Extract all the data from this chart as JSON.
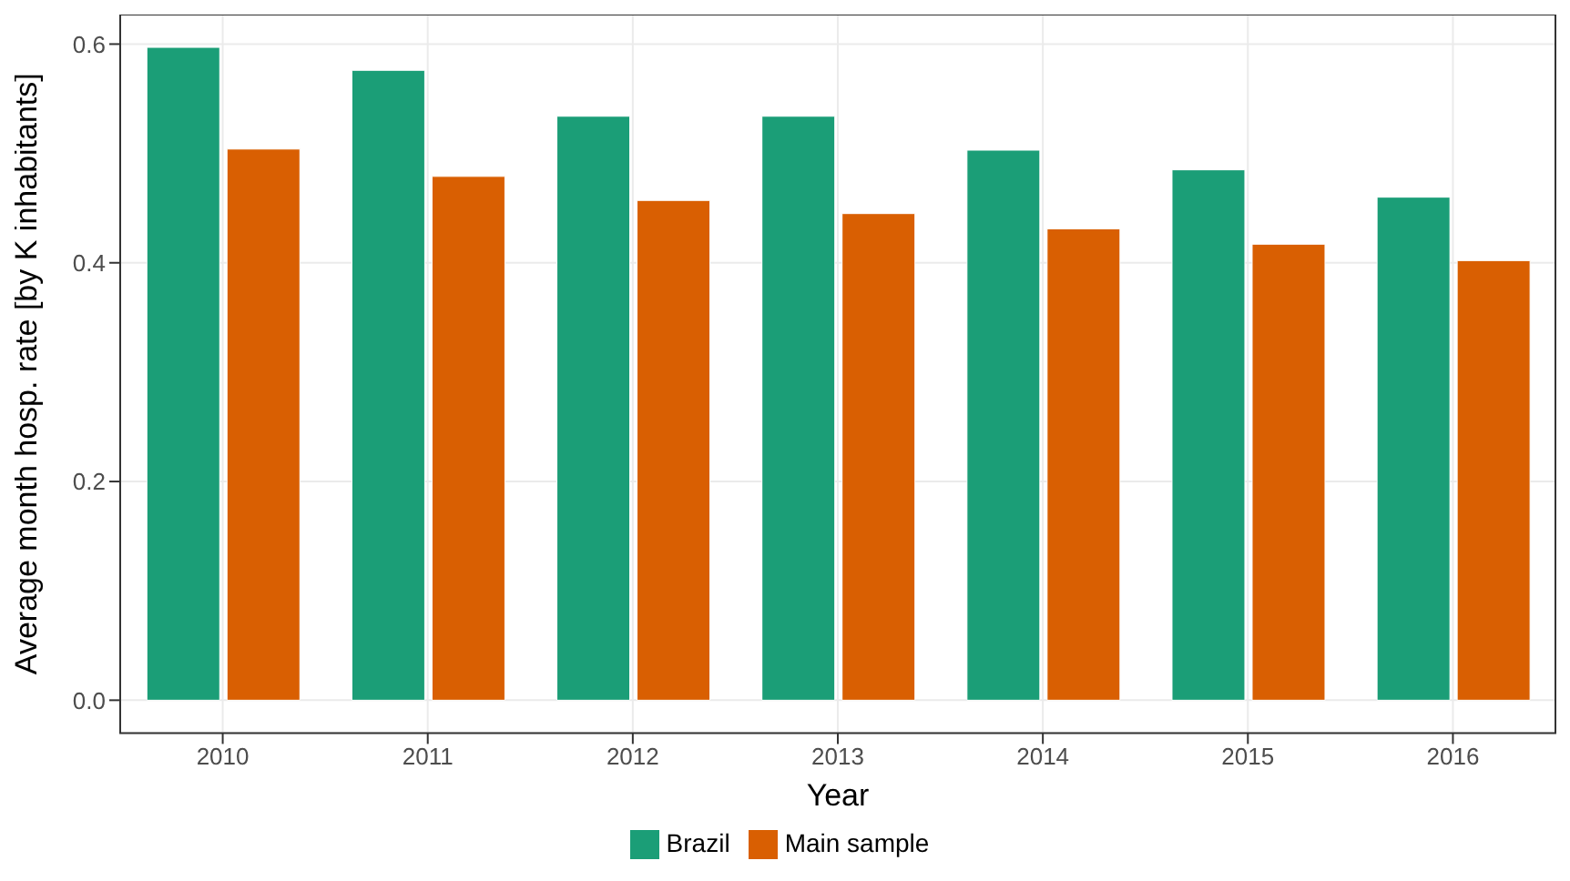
{
  "chart_data": {
    "type": "bar",
    "xlabel": "Year",
    "ylabel": "Average month hosp. rate [by K inhabitants]",
    "categories": [
      "2010",
      "2011",
      "2012",
      "2013",
      "2014",
      "2015",
      "2016"
    ],
    "series": [
      {
        "name": "Brazil",
        "color": "#1b9e77",
        "values": [
          0.597,
          0.576,
          0.534,
          0.534,
          0.503,
          0.485,
          0.46
        ]
      },
      {
        "name": "Main sample",
        "color": "#d95f02",
        "values": [
          0.504,
          0.479,
          0.457,
          0.445,
          0.431,
          0.417,
          0.402
        ]
      }
    ],
    "ylim": [
      -0.03,
      0.627
    ],
    "yticks": [
      {
        "value": 0,
        "label": "0.0"
      },
      0.2,
      0.4,
      0.6
    ],
    "grid": true,
    "legend": "bottom"
  }
}
